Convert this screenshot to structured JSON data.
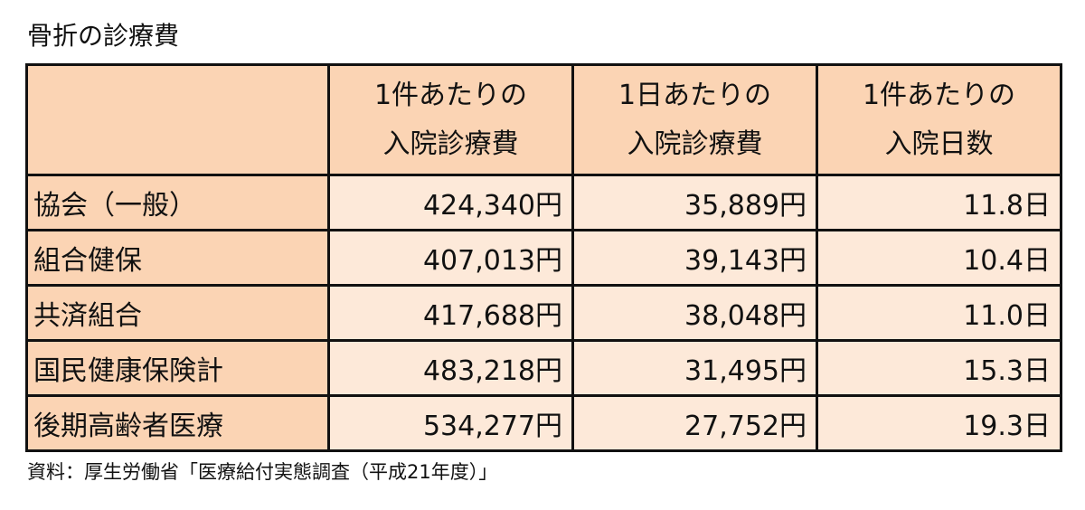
{
  "title": "骨折の診療費",
  "table": {
    "header": [
      [
        "1件あたりの",
        "入院診療費"
      ],
      [
        "1日あたりの",
        "入院診療費"
      ],
      [
        "1件あたりの",
        "入院日数"
      ]
    ],
    "rows": [
      [
        "協会（一般）",
        "424,340円",
        "35,889円",
        "11.8日"
      ],
      [
        "組合健保",
        "407,013円",
        "39,143円",
        "10.4日"
      ],
      [
        "共済組合",
        "417,688円",
        "38,048円",
        "11.0日"
      ],
      [
        "国民健康保険計",
        "483,218円",
        "31,495円",
        "15.3日"
      ],
      [
        "後期高齢者医療",
        "534,277円",
        "27,752円",
        "19.3日"
      ]
    ]
  },
  "source": "資料：厚生労働省「医療給付実態調査（平成21年度）」"
}
